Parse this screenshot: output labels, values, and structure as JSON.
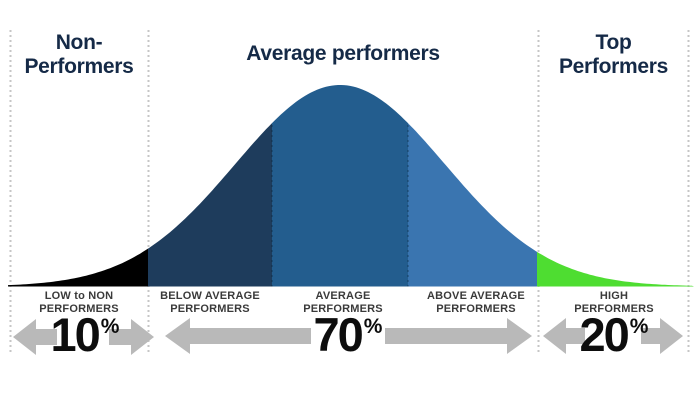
{
  "zones": [
    {
      "header_lines": [
        "Non-",
        "Performers"
      ],
      "percent": "10",
      "groups": [
        {
          "lines": [
            "LOW to NON",
            "PERFORMERS"
          ]
        }
      ]
    },
    {
      "header_lines": [
        "Average performers"
      ],
      "percent": "70",
      "groups": [
        {
          "lines": [
            "BELOW AVERAGE",
            "PERFORMERS"
          ]
        },
        {
          "lines": [
            "AVERAGE",
            "PERFORMERS"
          ]
        },
        {
          "lines": [
            "ABOVE AVERAGE",
            "PERFORMERS"
          ]
        }
      ]
    },
    {
      "header_lines": [
        "Top",
        "Performers"
      ],
      "percent": "20",
      "groups": [
        {
          "lines": [
            "HIGH",
            "PERFORMERS"
          ]
        }
      ]
    }
  ],
  "shared": {
    "percent_sign": "%"
  },
  "colors": {
    "seg_low_to_non": "#000000",
    "seg_below_average": "#1e3c5c",
    "seg_average": "#235d8e",
    "seg_above_average": "#3a75b0",
    "seg_high": "#4edd31",
    "header_text": "#152a47",
    "label_text": "#3a3a3a",
    "arrow_gray": "#b9b9b9",
    "dotted_guide": "#c6c6c6",
    "segment_divider": "rgba(10,30,50,0.35)"
  },
  "chart_data": {
    "type": "area",
    "title": "Bell curve of performer distribution",
    "curve": "normal-distribution",
    "groups": [
      {
        "group": "Non-Performers",
        "pct": 10,
        "band_label": "LOW to NON PERFORMERS",
        "color": "#000000"
      },
      {
        "group": "Average performers",
        "pct": 70,
        "band_labels": [
          "BELOW AVERAGE PERFORMERS",
          "AVERAGE PERFORMERS",
          "ABOVE AVERAGE PERFORMERS"
        ],
        "colors": [
          "#1e3c5c",
          "#235d8e",
          "#3a75b0"
        ]
      },
      {
        "group": "Top Performers",
        "pct": 20,
        "band_label": "HIGH PERFORMERS",
        "color": "#4edd31"
      }
    ],
    "legend_position": "none",
    "grid": false
  }
}
